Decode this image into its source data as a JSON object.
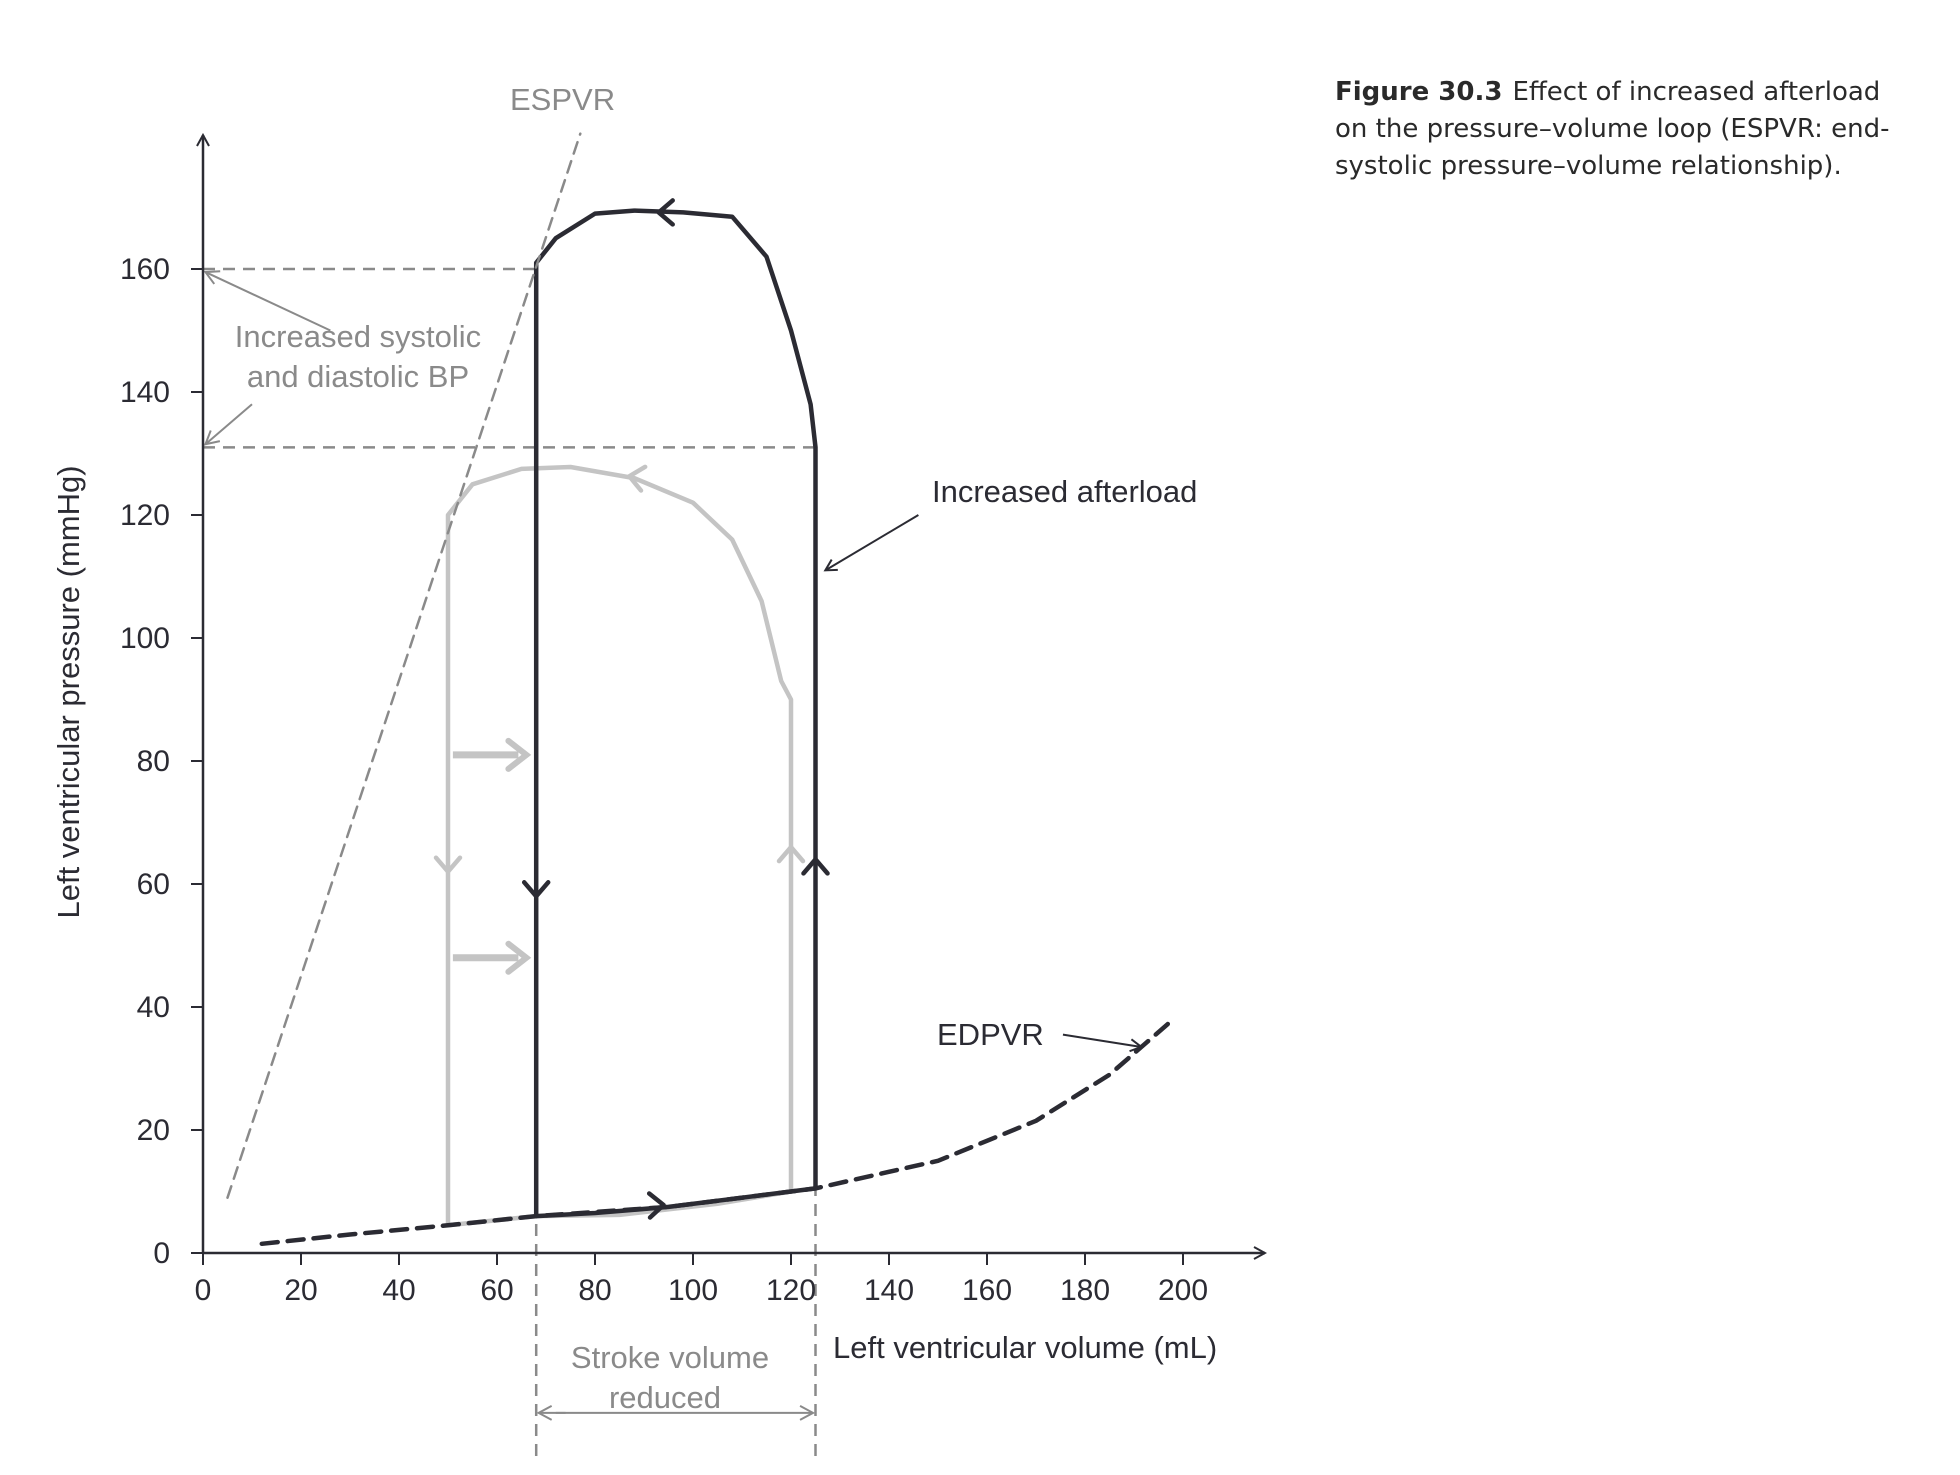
{
  "caption": {
    "figure_number": "Figure 30.3",
    "text": "Effect of increased afterload on the pressure–volume loop (ESPVR: end-systolic pressure–volume relationship)."
  },
  "annotations": {
    "espvr": "ESPVR",
    "edpvr": "EDPVR",
    "increased_afterload": "Increased afterload",
    "bp_line1": "Increased systolic",
    "bp_line2": "and diastolic BP",
    "sv_line1": "Stroke volume",
    "sv_line2": "reduced"
  },
  "colors": {
    "increased_loop": "#2b2b33",
    "baseline_loop": "#c4c4c4",
    "annotation_gray": "#8a8a8a",
    "axis": "#2b2b33"
  },
  "chart_data": {
    "type": "line",
    "xlabel": "Left ventricular volume (mL)",
    "ylabel": "Left ventricular pressure (mmHg)",
    "xlim": [
      0,
      200
    ],
    "ylim": [
      0,
      160
    ],
    "xticks": [
      0,
      20,
      40,
      60,
      80,
      100,
      120,
      140,
      160,
      180,
      200
    ],
    "yticks": [
      0,
      20,
      40,
      60,
      80,
      100,
      120,
      140,
      160
    ],
    "grid": false,
    "series": [
      {
        "name": "Increased afterload",
        "style": "solid",
        "points": [
          [
            68,
            6
          ],
          [
            68,
            161
          ],
          [
            72,
            165
          ],
          [
            80,
            169
          ],
          [
            88,
            169.5
          ],
          [
            98,
            169.2
          ],
          [
            108,
            168.5
          ],
          [
            115,
            162
          ],
          [
            120,
            150
          ],
          [
            124,
            138
          ],
          [
            125,
            131
          ],
          [
            125,
            10.5
          ],
          [
            110,
            9
          ],
          [
            95,
            7.5
          ],
          [
            80,
            6.5
          ],
          [
            68,
            6
          ]
        ]
      },
      {
        "style": "solid",
        "points": [
          [
            50,
            4.5
          ],
          [
            50,
            120
          ],
          [
            55,
            125
          ],
          [
            65,
            127.5
          ],
          [
            75,
            127.8
          ],
          [
            88,
            126
          ],
          [
            100,
            122
          ],
          [
            108,
            116
          ],
          [
            114,
            106
          ],
          [
            118,
            93
          ],
          [
            120,
            90
          ],
          [
            120,
            10
          ],
          [
            105,
            8
          ],
          [
            85,
            6.2
          ],
          [
            68,
            6
          ],
          [
            50,
            4.5
          ]
        ]
      },
      {
        "name": "EDPVR",
        "style": "dashed",
        "points": [
          [
            12,
            1.5
          ],
          [
            30,
            3
          ],
          [
            50,
            4.5
          ],
          [
            68,
            6
          ],
          [
            95,
            7.5
          ],
          [
            125,
            10.5
          ],
          [
            150,
            15
          ],
          [
            170,
            21.5
          ],
          [
            185,
            29
          ],
          [
            198,
            38
          ]
        ]
      },
      {
        "name": "ESPVR",
        "style": "dashed",
        "points": [
          [
            5,
            9
          ],
          [
            77,
            182
          ]
        ]
      }
    ],
    "reference_lines": [
      {
        "axis": "y",
        "value": 160,
        "x_range": [
          0,
          68
        ]
      },
      {
        "axis": "y",
        "value": 131,
        "x_range": [
          0,
          125
        ]
      },
      {
        "axis": "x",
        "value": 68,
        "y_range": [
          -33,
          6
        ]
      },
      {
        "axis": "x",
        "value": 125,
        "y_range": [
          -33,
          10.5
        ]
      }
    ]
  }
}
